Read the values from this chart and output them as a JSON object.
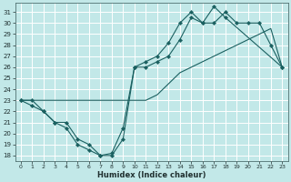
{
  "xlabel": "Humidex (Indice chaleur)",
  "bg_color": "#c2e8e8",
  "grid_color": "#ffffff",
  "line_color": "#1a6060",
  "xlim": [
    -0.5,
    23.5
  ],
  "ylim": [
    17.5,
    31.8
  ],
  "xticks": [
    0,
    1,
    2,
    3,
    4,
    5,
    6,
    7,
    8,
    9,
    10,
    11,
    12,
    13,
    14,
    15,
    16,
    17,
    18,
    19,
    20,
    21,
    22,
    23
  ],
  "yticks": [
    18,
    19,
    20,
    21,
    22,
    23,
    24,
    25,
    26,
    27,
    28,
    29,
    30,
    31
  ],
  "line1_x": [
    0,
    1,
    2,
    3,
    4,
    5,
    6,
    7,
    8,
    9,
    10,
    11,
    12,
    13,
    14,
    15,
    16,
    17,
    18,
    19,
    20,
    21,
    22,
    23
  ],
  "line1_y": [
    23,
    23,
    22,
    21,
    21,
    19.5,
    19,
    18,
    18.2,
    20.5,
    26,
    26.5,
    27,
    28.2,
    30,
    31,
    30,
    30,
    31,
    30,
    30,
    30,
    28,
    26
  ],
  "line2_x": [
    0,
    1,
    2,
    3,
    10,
    11,
    12,
    13,
    14,
    15,
    16,
    17,
    18,
    19,
    20,
    21,
    22,
    23
  ],
  "line2_y": [
    23,
    23,
    23,
    23,
    23,
    23,
    23.5,
    24.5,
    25.5,
    26,
    26.5,
    27,
    27.5,
    28,
    28.5,
    29,
    29.5,
    26
  ],
  "line3_x": [
    0,
    1,
    2,
    3,
    4,
    5,
    6,
    7,
    8,
    9,
    10,
    11,
    12,
    13,
    14,
    15,
    16,
    17,
    18,
    23
  ],
  "line3_y": [
    23,
    22.5,
    22,
    21,
    20.5,
    19,
    18.5,
    18,
    18,
    19.5,
    26,
    26,
    26.5,
    27,
    28.5,
    30.5,
    30,
    31.5,
    30.5,
    26
  ]
}
